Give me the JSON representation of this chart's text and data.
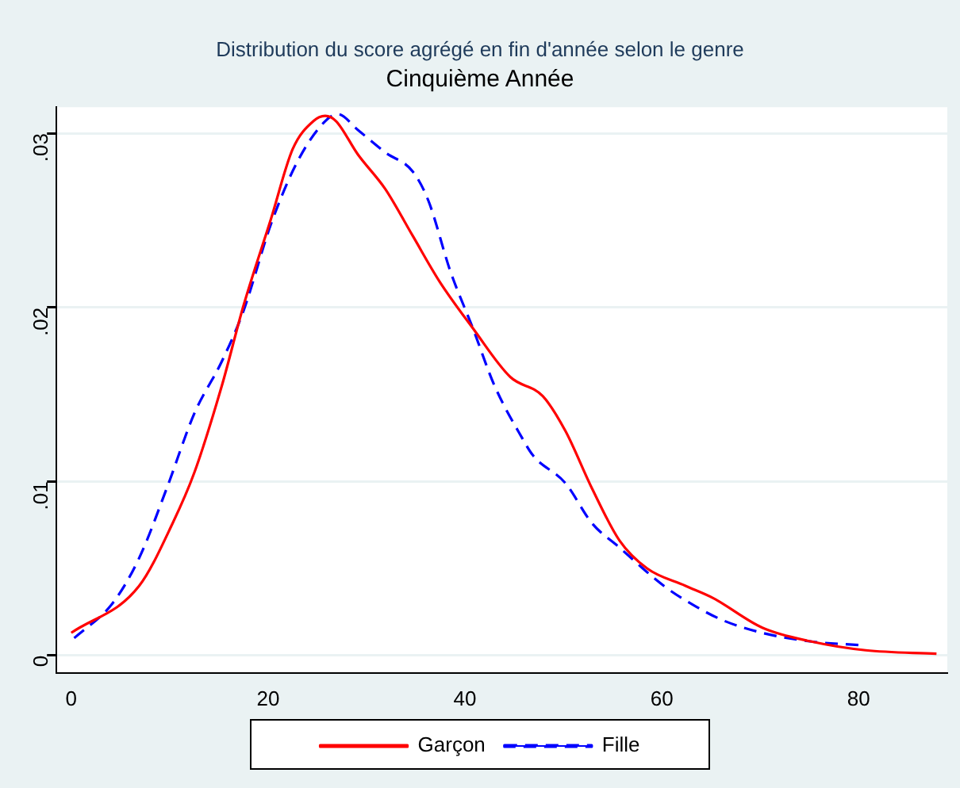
{
  "chart_data": {
    "type": "line",
    "title": "Distribution du score agrégé en fin d'année selon le genre",
    "subtitle": "Cinquième Année",
    "xlim": [
      -1.5,
      89
    ],
    "xticks": [
      0,
      20,
      40,
      60,
      80
    ],
    "ylim": [
      -0.001,
      0.0315
    ],
    "yticks": [
      {
        "value": 0,
        "label": "0"
      },
      {
        "value": 0.01,
        "label": ".01"
      },
      {
        "value": 0.02,
        "label": ".02"
      },
      {
        "value": 0.03,
        "label": ".03"
      }
    ],
    "grid": "y",
    "legend": "bottom",
    "marker": "none",
    "series": [
      {
        "name": "Garçon",
        "color": "#ff0000",
        "line_style": "solid",
        "x": [
          0,
          6.9,
          10.3,
          12.5,
          15.3,
          17.5,
          20.3,
          22.5,
          24.6,
          25.8,
          26.9,
          29.1,
          31.9,
          34.7,
          37.4,
          40.8,
          44.6,
          47.9,
          50.2,
          52.9,
          55.7,
          58.5,
          62.4,
          65.2,
          70.2,
          75.2,
          80.7,
          87.9
        ],
        "values": [
          0.0013,
          0.004,
          0.0076,
          0.0105,
          0.0155,
          0.0201,
          0.0251,
          0.0291,
          0.0307,
          0.031,
          0.0307,
          0.0288,
          0.0268,
          0.0241,
          0.0215,
          0.0188,
          0.016,
          0.0149,
          0.0129,
          0.0096,
          0.0066,
          0.005,
          0.004,
          0.0033,
          0.0016,
          0.0008,
          0.0003,
          0.0001
        ]
      },
      {
        "name": "Fille",
        "color": "#0000ff",
        "line_style": "dashed",
        "x": [
          0.3,
          4.2,
          6.9,
          9.7,
          12.5,
          15.3,
          17.5,
          20.3,
          23,
          25.8,
          27.1,
          29.1,
          31.9,
          34.7,
          36.3,
          38.5,
          40.8,
          43,
          45.8,
          46.9,
          50.2,
          52.9,
          55.7,
          60.2,
          63.5,
          66.3,
          70.2,
          75.2,
          80.1
        ],
        "values": [
          0.001,
          0.003,
          0.0056,
          0.0096,
          0.0139,
          0.0169,
          0.0198,
          0.0248,
          0.0284,
          0.0307,
          0.0311,
          0.0302,
          0.0289,
          0.0278,
          0.0261,
          0.0221,
          0.0188,
          0.0155,
          0.0125,
          0.0115,
          0.0099,
          0.0076,
          0.0062,
          0.004,
          0.0028,
          0.002,
          0.0013,
          0.0008,
          0.0006
        ]
      }
    ]
  }
}
